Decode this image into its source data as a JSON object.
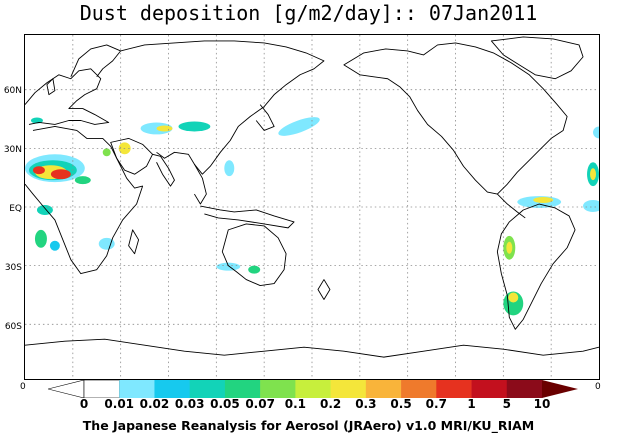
{
  "title": "Dust deposition [g/m2/day]:: 07Jan2011",
  "lat_labels": [
    "60N",
    "30N",
    "EQ",
    "30S",
    "60S"
  ],
  "edge_labels": {
    "left": "0",
    "right": "0"
  },
  "colorbar": {
    "labels": [
      "0",
      "0.01",
      "0.02",
      "0.03",
      "0.05",
      "0.07",
      "0.1",
      "0.2",
      "0.3",
      "0.5",
      "0.7",
      "1",
      "5",
      "10"
    ],
    "colors": [
      "#ffffff",
      "#ffffff",
      "#7fe8ff",
      "#17c9ee",
      "#12d3b8",
      "#22d480",
      "#7fe24e",
      "#c7ef3c",
      "#f4e63a",
      "#f9b43a",
      "#ef7a2c",
      "#e6321f",
      "#c3101e",
      "#8b0b1a",
      "#6a0000"
    ]
  },
  "footer": "The Japanese Reanalysis for Aerosol (JRAero) v1.0 MRI/KU_RIAM"
}
